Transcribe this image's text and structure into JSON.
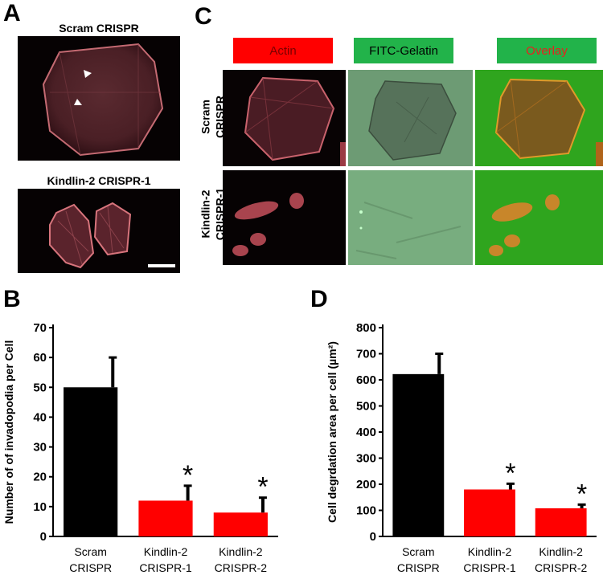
{
  "panels": {
    "a": "A",
    "b": "B",
    "c": "C",
    "d": "D"
  },
  "panel_a": {
    "top_caption": "Scram CRISPR",
    "bottom_caption": "Kindlin-2 CRISPR-1"
  },
  "panel_c": {
    "col_headers": [
      "Actin",
      "FITC-Gelatin",
      "Overlay"
    ],
    "row_labels": [
      "Scram\nCRISPR",
      "Kindlin-2\nCRISPR-1"
    ]
  },
  "colors": {
    "control": "#000000",
    "knockdown": "#ff0000",
    "actin_header": "#ff0000",
    "green_header": "#22b34a",
    "overlay_text": "#e8201e"
  },
  "chart_data": [
    {
      "type": "bar",
      "panel": "B",
      "categories": [
        [
          "Scram",
          "CRISPR"
        ],
        [
          "Kindlin-2",
          "CRISPR-1"
        ],
        [
          "Kindlin-2",
          "CRISPR-2"
        ]
      ],
      "values": [
        50,
        12,
        8
      ],
      "errors": [
        10,
        5,
        5
      ],
      "significance": [
        "",
        "*",
        "*"
      ],
      "ylabel": "Number of of invadopodia per Cell",
      "ylim": [
        0,
        70
      ],
      "yticks": [
        0,
        10,
        20,
        30,
        40,
        50,
        60,
        70
      ],
      "bar_colors": [
        "#000000",
        "#ff0000",
        "#ff0000"
      ]
    },
    {
      "type": "bar",
      "panel": "D",
      "categories": [
        [
          "Scram",
          "CRISPR"
        ],
        [
          "Kindlin-2",
          "CRISPR-1"
        ],
        [
          "Kindlin-2",
          "CRISPR-2"
        ]
      ],
      "values": [
        622,
        180,
        108
      ],
      "errors": [
        78,
        22,
        14
      ],
      "significance": [
        "",
        "*",
        "*"
      ],
      "ylabel": "Cell degrdation area per cell (µm²)",
      "ylim": [
        0,
        800
      ],
      "yticks": [
        0,
        100,
        200,
        300,
        400,
        500,
        600,
        700,
        800
      ],
      "bar_colors": [
        "#000000",
        "#ff0000",
        "#ff0000"
      ]
    }
  ]
}
